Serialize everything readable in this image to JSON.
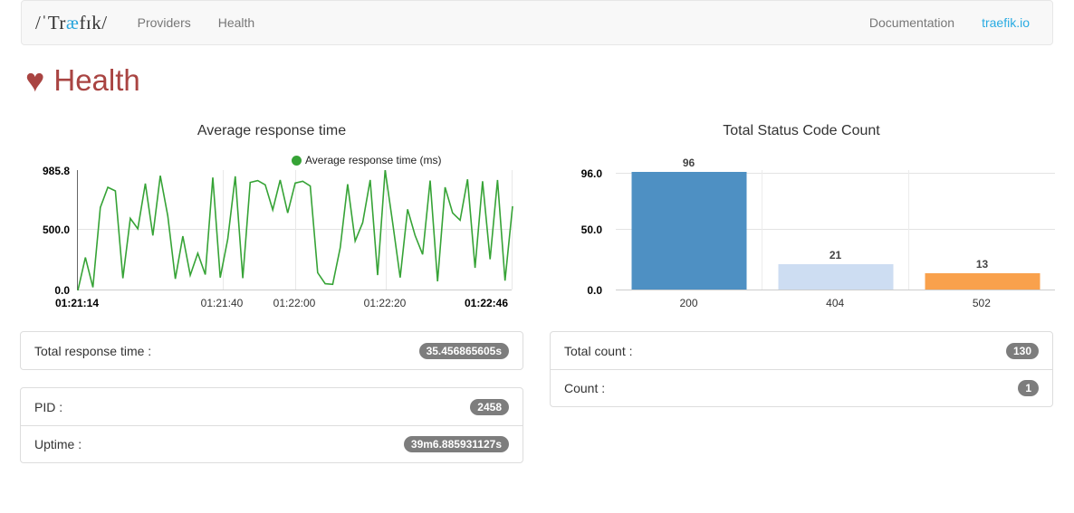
{
  "navbar": {
    "logo": {
      "pre": "/ˈTr",
      "accent": "æ",
      "post": "fɪk/"
    },
    "links_left": [
      "Providers",
      "Health"
    ],
    "links_right": [
      "Documentation",
      "traefik.io"
    ],
    "accent_color": "#29abe2"
  },
  "header": {
    "title": "Health",
    "icon": "heart-icon",
    "color": "#a94442"
  },
  "chart_data": [
    {
      "type": "line",
      "title": "Average response time",
      "legend": [
        "Average response time (ms)"
      ],
      "line_color": "#36a336",
      "ylim": [
        0,
        985.8
      ],
      "y_ticks": [
        "985.8",
        "500.0",
        "0.0"
      ],
      "x_ticks": [
        "01:21:14",
        "01:21:40",
        "01:22:00",
        "01:22:20",
        "01:22:46"
      ],
      "grid": true,
      "values": [
        0,
        270,
        25,
        680,
        845,
        815,
        100,
        590,
        505,
        875,
        450,
        940,
        610,
        95,
        445,
        125,
        305,
        130,
        925,
        105,
        420,
        935,
        100,
        885,
        900,
        865,
        660,
        905,
        635,
        880,
        895,
        855,
        145,
        55,
        50,
        350,
        870,
        405,
        555,
        905,
        125,
        985,
        555,
        105,
        665,
        450,
        295,
        900,
        75,
        845,
        635,
        575,
        910,
        185,
        895,
        255,
        905,
        80,
        690
      ]
    },
    {
      "type": "bar",
      "title": "Total Status Code Count",
      "categories": [
        "200",
        "404",
        "502"
      ],
      "values": [
        96,
        21,
        13
      ],
      "bar_colors": [
        "#4e90c3",
        "#cdddf2",
        "#f9a14c"
      ],
      "ylim": [
        0,
        96
      ],
      "y_ticks": [
        "96.0",
        "50.0",
        "0.0"
      ],
      "grid": true
    }
  ],
  "panels": {
    "response_time": {
      "label": "Total response time :",
      "value": "35.456865605s"
    },
    "process": [
      {
        "label": "PID :",
        "value": "2458"
      },
      {
        "label": "Uptime :",
        "value": "39m6.885931127s"
      }
    ],
    "counts": [
      {
        "label": "Total count :",
        "value": "130"
      },
      {
        "label": "Count :",
        "value": "1"
      }
    ]
  }
}
